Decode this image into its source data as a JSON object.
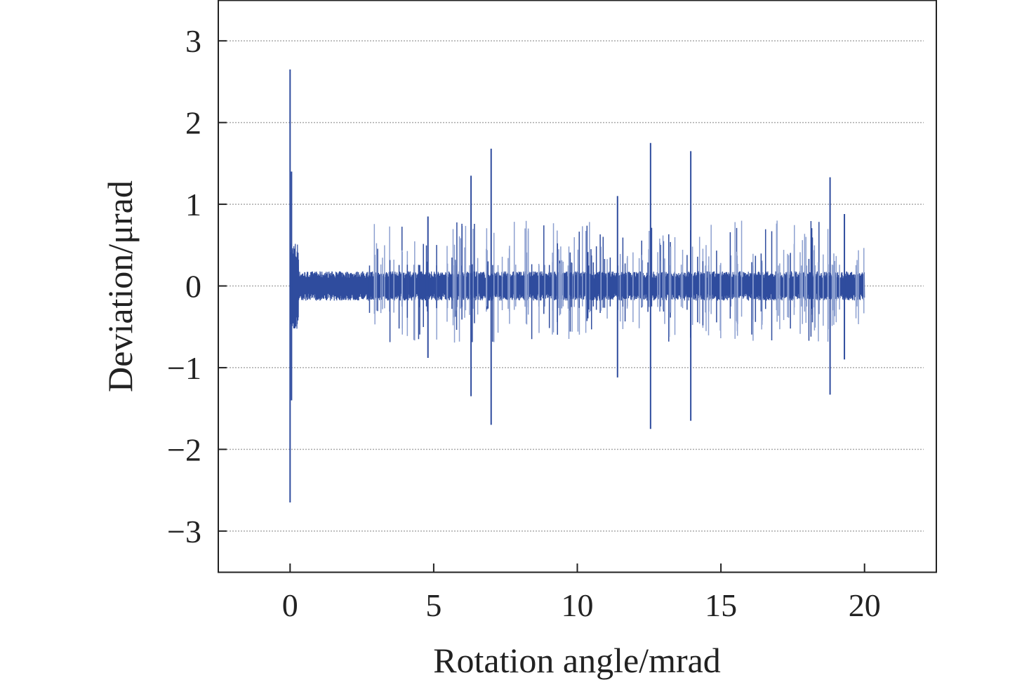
{
  "chart_data": {
    "type": "line",
    "title": "",
    "xlabel": "Rotation angle/mrad",
    "ylabel": "Deviation/μrad",
    "xlim": [
      -2.5,
      22.5
    ],
    "ylim": [
      -3.5,
      3.5
    ],
    "xticks": [
      0,
      5,
      10,
      15,
      20
    ],
    "xtick_labels": [
      "0",
      "5",
      "10",
      "15",
      "20"
    ],
    "yticks": [
      3,
      2,
      1,
      0,
      -1,
      -2,
      -3
    ],
    "ytick_labels": [
      "3",
      "2",
      "1",
      "0",
      "−1",
      "−2",
      "−3"
    ],
    "grid": "horizontal dotted",
    "series": [
      {
        "name": "deviation",
        "color": "#2f4c9e",
        "x_range": [
          0,
          20
        ],
        "baseline_noise_amplitude": 0.15,
        "spikes": [
          {
            "x": 0.0,
            "max": 2.65,
            "min": -2.65
          },
          {
            "x": 0.05,
            "max": 1.4,
            "min": -1.4
          },
          {
            "x": 4.8,
            "max": 0.85,
            "min": -0.88
          },
          {
            "x": 6.3,
            "max": 1.35,
            "min": -1.35
          },
          {
            "x": 7.0,
            "max": 1.68,
            "min": -1.7
          },
          {
            "x": 11.4,
            "max": 1.1,
            "min": -1.12
          },
          {
            "x": 12.55,
            "max": 1.75,
            "min": -1.75
          },
          {
            "x": 13.95,
            "max": 1.65,
            "min": -1.65
          },
          {
            "x": 18.8,
            "max": 1.33,
            "min": -1.33
          },
          {
            "x": 19.3,
            "max": 0.88,
            "min": -0.9
          }
        ]
      }
    ]
  }
}
